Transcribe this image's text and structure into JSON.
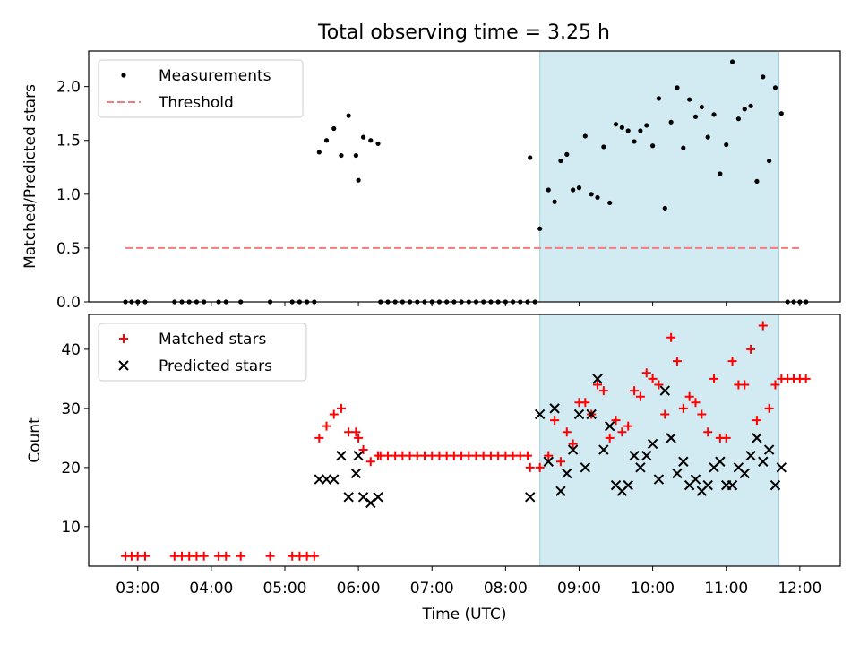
{
  "figure": {
    "title": "Total observing time = 3.25 h",
    "highlight_color": "#add8e6"
  },
  "chart_data": [
    {
      "type": "scatter",
      "title": "Total observing time = 3.25 h",
      "xlabel": "",
      "ylabel": "Matched/Predicted stars",
      "xlim": [
        "02:20",
        "12:33"
      ],
      "ylim": [
        0,
        2.33
      ],
      "yticks": [
        "0.0",
        "0.5",
        "1.0",
        "1.5",
        "2.0"
      ],
      "highlight_span": [
        "08:28",
        "11:43"
      ],
      "legend": {
        "position": "top-left",
        "entries": [
          "Measurements",
          "Threshold"
        ]
      },
      "series": [
        {
          "name": "Measurements",
          "marker": "dot",
          "color": "#000000",
          "points": [
            [
              "02:50",
              0
            ],
            [
              "02:55",
              0
            ],
            [
              "03:00",
              0
            ],
            [
              "03:06",
              0
            ],
            [
              "03:30",
              0
            ],
            [
              "03:36",
              0
            ],
            [
              "03:42",
              0
            ],
            [
              "03:48",
              0
            ],
            [
              "03:54",
              0
            ],
            [
              "04:06",
              0
            ],
            [
              "04:12",
              0
            ],
            [
              "04:24",
              0
            ],
            [
              "04:48",
              0
            ],
            [
              "05:06",
              0
            ],
            [
              "05:12",
              0
            ],
            [
              "05:18",
              0
            ],
            [
              "05:24",
              0
            ],
            [
              "05:28",
              1.39
            ],
            [
              "05:34",
              1.5
            ],
            [
              "05:40",
              1.61
            ],
            [
              "05:46",
              1.36
            ],
            [
              "05:52",
              1.73
            ],
            [
              "05:58",
              1.36
            ],
            [
              "06:00",
              1.13
            ],
            [
              "06:04",
              1.53
            ],
            [
              "06:10",
              1.5
            ],
            [
              "06:16",
              1.47
            ],
            [
              "06:18",
              0
            ],
            [
              "06:24",
              0
            ],
            [
              "06:30",
              0
            ],
            [
              "06:36",
              0
            ],
            [
              "06:42",
              0
            ],
            [
              "06:48",
              0
            ],
            [
              "06:54",
              0
            ],
            [
              "07:00",
              0
            ],
            [
              "07:06",
              0
            ],
            [
              "07:12",
              0
            ],
            [
              "07:18",
              0
            ],
            [
              "07:24",
              0
            ],
            [
              "07:30",
              0
            ],
            [
              "07:36",
              0
            ],
            [
              "07:42",
              0
            ],
            [
              "07:48",
              0
            ],
            [
              "07:54",
              0
            ],
            [
              "08:00",
              0
            ],
            [
              "08:06",
              0
            ],
            [
              "08:12",
              0
            ],
            [
              "08:18",
              0
            ],
            [
              "08:24",
              0
            ],
            [
              "08:20",
              1.34
            ],
            [
              "08:28",
              0.68
            ],
            [
              "08:35",
              1.04
            ],
            [
              "08:40",
              0.93
            ],
            [
              "08:45",
              1.31
            ],
            [
              "08:50",
              1.37
            ],
            [
              "08:55",
              1.04
            ],
            [
              "09:00",
              1.06
            ],
            [
              "09:05",
              1.54
            ],
            [
              "09:10",
              1.0
            ],
            [
              "09:15",
              0.97
            ],
            [
              "09:20",
              1.44
            ],
            [
              "09:25",
              0.92
            ],
            [
              "09:30",
              1.65
            ],
            [
              "09:35",
              1.62
            ],
            [
              "09:40",
              1.59
            ],
            [
              "09:45",
              1.49
            ],
            [
              "09:50",
              1.59
            ],
            [
              "09:55",
              1.64
            ],
            [
              "10:00",
              1.45
            ],
            [
              "10:05",
              1.89
            ],
            [
              "10:10",
              0.87
            ],
            [
              "10:15",
              1.67
            ],
            [
              "10:20",
              1.99
            ],
            [
              "10:25",
              1.43
            ],
            [
              "10:30",
              1.88
            ],
            [
              "10:35",
              1.72
            ],
            [
              "10:40",
              1.81
            ],
            [
              "10:45",
              1.53
            ],
            [
              "10:50",
              1.74
            ],
            [
              "10:55",
              1.19
            ],
            [
              "11:00",
              1.46
            ],
            [
              "11:05",
              2.23
            ],
            [
              "11:10",
              1.7
            ],
            [
              "11:15",
              1.79
            ],
            [
              "11:20",
              1.82
            ],
            [
              "11:25",
              1.12
            ],
            [
              "11:30",
              2.09
            ],
            [
              "11:35",
              1.31
            ],
            [
              "11:40",
              1.99
            ],
            [
              "11:45",
              1.75
            ],
            [
              "11:50",
              0
            ],
            [
              "11:55",
              0
            ],
            [
              "12:00",
              0
            ],
            [
              "12:05",
              0
            ]
          ]
        },
        {
          "name": "Threshold",
          "marker": "dashed-line",
          "color": "#f47c7c",
          "points": [
            [
              "02:50",
              0.5
            ],
            [
              "12:00",
              0.5
            ]
          ]
        }
      ]
    },
    {
      "type": "scatter",
      "xlabel": "Time (UTC)",
      "ylabel": "Count",
      "xticks": [
        "03:00",
        "04:00",
        "05:00",
        "06:00",
        "07:00",
        "08:00",
        "09:00",
        "10:00",
        "11:00",
        "12:00"
      ],
      "xlim": [
        "02:20",
        "12:33"
      ],
      "ylim": [
        3.3,
        45.9
      ],
      "yticks": [
        "10",
        "20",
        "30",
        "40"
      ],
      "highlight_span": [
        "08:28",
        "11:43"
      ],
      "legend": {
        "position": "top-left",
        "entries": [
          "Matched stars",
          "Predicted stars"
        ]
      },
      "series": [
        {
          "name": "Matched stars",
          "marker": "plus",
          "color": "#ff0000",
          "points": [
            [
              "02:50",
              5
            ],
            [
              "02:55",
              5
            ],
            [
              "03:00",
              5
            ],
            [
              "03:06",
              5
            ],
            [
              "03:30",
              5
            ],
            [
              "03:36",
              5
            ],
            [
              "03:42",
              5
            ],
            [
              "03:48",
              5
            ],
            [
              "03:54",
              5
            ],
            [
              "04:06",
              5
            ],
            [
              "04:12",
              5
            ],
            [
              "04:24",
              5
            ],
            [
              "04:48",
              5
            ],
            [
              "05:06",
              5
            ],
            [
              "05:12",
              5
            ],
            [
              "05:18",
              5
            ],
            [
              "05:24",
              5
            ],
            [
              "05:28",
              25
            ],
            [
              "05:34",
              27
            ],
            [
              "05:40",
              29
            ],
            [
              "05:46",
              30
            ],
            [
              "05:52",
              26
            ],
            [
              "05:58",
              26
            ],
            [
              "06:00",
              25
            ],
            [
              "06:04",
              23
            ],
            [
              "06:10",
              21
            ],
            [
              "06:16",
              22
            ],
            [
              "06:18",
              22
            ],
            [
              "06:24",
              22
            ],
            [
              "06:30",
              22
            ],
            [
              "06:36",
              22
            ],
            [
              "06:42",
              22
            ],
            [
              "06:48",
              22
            ],
            [
              "06:54",
              22
            ],
            [
              "07:00",
              22
            ],
            [
              "07:06",
              22
            ],
            [
              "07:12",
              22
            ],
            [
              "07:18",
              22
            ],
            [
              "07:24",
              22
            ],
            [
              "07:30",
              22
            ],
            [
              "07:36",
              22
            ],
            [
              "07:42",
              22
            ],
            [
              "07:48",
              22
            ],
            [
              "07:54",
              22
            ],
            [
              "08:00",
              22
            ],
            [
              "08:06",
              22
            ],
            [
              "08:12",
              22
            ],
            [
              "08:18",
              22
            ],
            [
              "08:20",
              20
            ],
            [
              "08:28",
              20
            ],
            [
              "08:35",
              22
            ],
            [
              "08:40",
              28
            ],
            [
              "08:45",
              21
            ],
            [
              "08:50",
              26
            ],
            [
              "08:55",
              24
            ],
            [
              "09:00",
              31
            ],
            [
              "09:05",
              31
            ],
            [
              "09:10",
              29
            ],
            [
              "09:15",
              34
            ],
            [
              "09:20",
              33
            ],
            [
              "09:25",
              25
            ],
            [
              "09:30",
              28
            ],
            [
              "09:35",
              26
            ],
            [
              "09:40",
              27
            ],
            [
              "09:45",
              33
            ],
            [
              "09:50",
              32
            ],
            [
              "09:55",
              36
            ],
            [
              "10:00",
              35
            ],
            [
              "10:05",
              34
            ],
            [
              "10:10",
              29
            ],
            [
              "10:15",
              42
            ],
            [
              "10:20",
              38
            ],
            [
              "10:25",
              30
            ],
            [
              "10:30",
              32
            ],
            [
              "10:35",
              31
            ],
            [
              "10:40",
              29
            ],
            [
              "10:45",
              26
            ],
            [
              "10:50",
              35
            ],
            [
              "10:55",
              25
            ],
            [
              "11:00",
              25
            ],
            [
              "11:05",
              38
            ],
            [
              "11:10",
              34
            ],
            [
              "11:15",
              34
            ],
            [
              "11:20",
              40
            ],
            [
              "11:25",
              28
            ],
            [
              "11:30",
              44
            ],
            [
              "11:35",
              30
            ],
            [
              "11:40",
              34
            ],
            [
              "11:45",
              35
            ],
            [
              "11:50",
              35
            ],
            [
              "11:55",
              35
            ],
            [
              "12:00",
              35
            ],
            [
              "12:05",
              35
            ]
          ]
        },
        {
          "name": "Predicted stars",
          "marker": "x",
          "color": "#000000",
          "points": [
            [
              "05:28",
              18
            ],
            [
              "05:34",
              18
            ],
            [
              "05:40",
              18
            ],
            [
              "05:46",
              22
            ],
            [
              "05:52",
              15
            ],
            [
              "05:58",
              19
            ],
            [
              "06:00",
              22
            ],
            [
              "06:04",
              15
            ],
            [
              "06:10",
              14
            ],
            [
              "06:16",
              15
            ],
            [
              "08:20",
              15
            ],
            [
              "08:28",
              29
            ],
            [
              "08:35",
              21
            ],
            [
              "08:40",
              30
            ],
            [
              "08:45",
              16
            ],
            [
              "08:50",
              19
            ],
            [
              "08:55",
              23
            ],
            [
              "09:00",
              29
            ],
            [
              "09:05",
              20
            ],
            [
              "09:10",
              29
            ],
            [
              "09:15",
              35
            ],
            [
              "09:20",
              23
            ],
            [
              "09:25",
              27
            ],
            [
              "09:30",
              17
            ],
            [
              "09:35",
              16
            ],
            [
              "09:40",
              17
            ],
            [
              "09:45",
              22
            ],
            [
              "09:50",
              20
            ],
            [
              "09:55",
              22
            ],
            [
              "10:00",
              24
            ],
            [
              "10:05",
              18
            ],
            [
              "10:10",
              33
            ],
            [
              "10:15",
              25
            ],
            [
              "10:20",
              19
            ],
            [
              "10:25",
              21
            ],
            [
              "10:30",
              17
            ],
            [
              "10:35",
              18
            ],
            [
              "10:40",
              16
            ],
            [
              "10:45",
              17
            ],
            [
              "10:50",
              20
            ],
            [
              "10:55",
              21
            ],
            [
              "11:00",
              17
            ],
            [
              "11:05",
              17
            ],
            [
              "11:10",
              20
            ],
            [
              "11:15",
              19
            ],
            [
              "11:20",
              22
            ],
            [
              "11:25",
              25
            ],
            [
              "11:30",
              21
            ],
            [
              "11:35",
              23
            ],
            [
              "11:40",
              17
            ],
            [
              "11:45",
              20
            ]
          ]
        }
      ]
    }
  ]
}
